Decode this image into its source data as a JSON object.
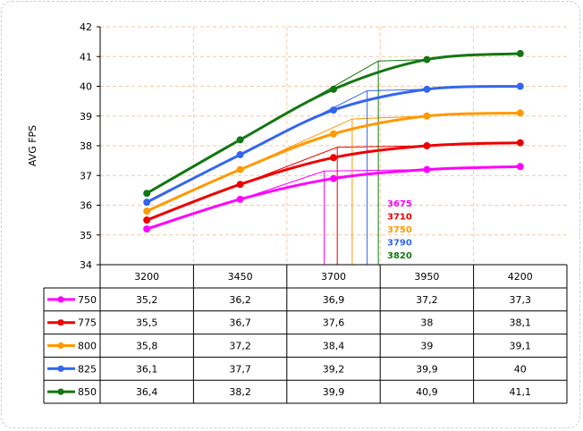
{
  "chart_data": {
    "type": "line",
    "title": "",
    "xlabel": "",
    "ylabel": "AVG FPS",
    "ylim": [
      34,
      42
    ],
    "yticks": [
      34,
      35,
      36,
      37,
      38,
      39,
      40,
      41,
      42
    ],
    "grid": true,
    "legend": "data-table",
    "categories": [
      "3200",
      "3450",
      "3700",
      "3950",
      "4200"
    ],
    "x": [
      3200,
      3450,
      3700,
      3950,
      4200
    ],
    "series": [
      {
        "name": "750",
        "color": "#ff00ff",
        "values": [
          35.2,
          36.2,
          36.9,
          37.2,
          37.3
        ],
        "labels": [
          "35,2",
          "36,2",
          "36,9",
          "37,2",
          "37,3"
        ]
      },
      {
        "name": "775",
        "color": "#ee0000",
        "values": [
          35.5,
          36.7,
          37.6,
          38.0,
          38.1
        ],
        "labels": [
          "35,5",
          "36,7",
          "37,6",
          "38",
          "38,1"
        ]
      },
      {
        "name": "800",
        "color": "#ff9900",
        "values": [
          35.8,
          37.2,
          38.4,
          39.0,
          39.1
        ],
        "labels": [
          "35,8",
          "37,2",
          "38,4",
          "39",
          "39,1"
        ]
      },
      {
        "name": "825",
        "color": "#3366ee",
        "values": [
          36.1,
          37.7,
          39.2,
          39.9,
          40.0
        ],
        "labels": [
          "36,1",
          "37,7",
          "39,2",
          "39,9",
          "40"
        ]
      },
      {
        "name": "850",
        "color": "#117711",
        "values": [
          36.4,
          38.2,
          39.9,
          40.9,
          41.1
        ],
        "labels": [
          "36,4",
          "38,2",
          "39,9",
          "40,9",
          "41,1"
        ]
      }
    ],
    "annotations": [
      {
        "text": "3675",
        "x": 3675,
        "y": 37.15,
        "color": "#ff00ff"
      },
      {
        "text": "3710",
        "x": 3710,
        "y": 37.95,
        "color": "#ee0000"
      },
      {
        "text": "3750",
        "x": 3750,
        "y": 38.9,
        "color": "#ff9900"
      },
      {
        "text": "3790",
        "x": 3790,
        "y": 39.85,
        "color": "#3366ee"
      },
      {
        "text": "3820",
        "x": 3820,
        "y": 40.85,
        "color": "#117711"
      }
    ]
  }
}
